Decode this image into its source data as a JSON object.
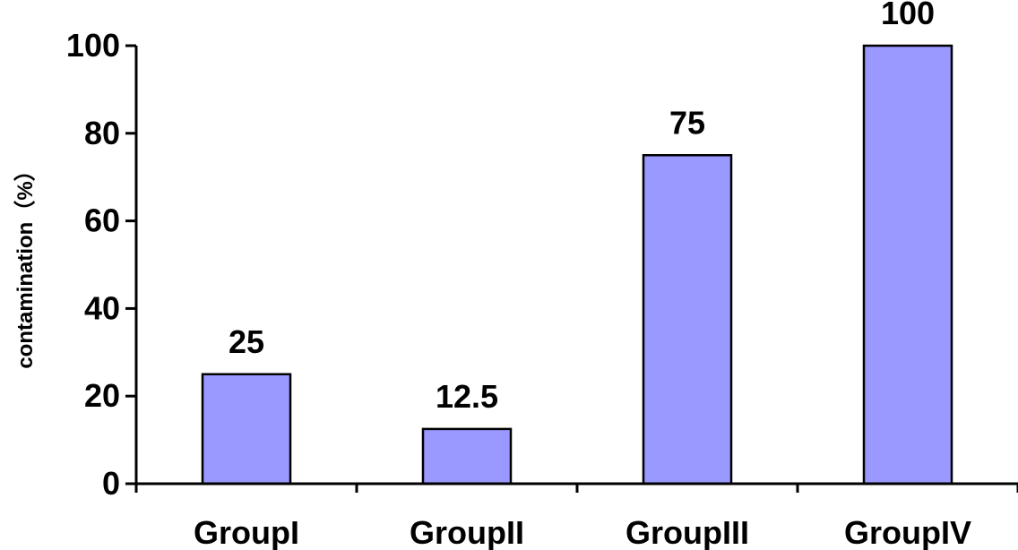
{
  "chart_data": {
    "type": "bar",
    "categories": [
      "GroupI",
      "GroupII",
      "GroupIII",
      "GroupIV"
    ],
    "values": [
      25,
      12.5,
      75,
      100
    ],
    "data_labels": [
      "25",
      "12.5",
      "75",
      "100"
    ],
    "title": "",
    "xlabel": "",
    "ylabel": "contamination（%）",
    "ylim": [
      0,
      100
    ],
    "yticks": [
      0,
      20,
      40,
      60,
      80,
      100
    ],
    "grid": false,
    "legend": "none",
    "colors": {
      "bar_fill": "#9999FF",
      "bar_stroke": "#000000"
    }
  }
}
